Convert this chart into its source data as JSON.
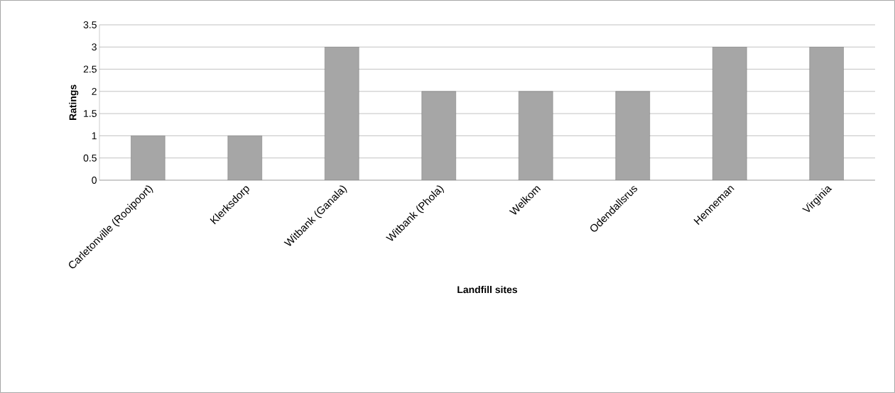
{
  "chart_data": {
    "type": "bar",
    "xlabel": "Landfill sites",
    "ylabel": "Ratings",
    "categories": [
      "Carletonville (Rooipoort)",
      "Klerksdorp",
      "Witbank (Ganala)",
      "Witbank (Phola)",
      "Welkom",
      "Odendallsrus",
      "Henneman",
      "Virginia"
    ],
    "values": [
      1,
      1,
      3,
      2,
      2,
      2,
      3,
      3
    ],
    "color": "#a6a6a6",
    "ylim": [
      0,
      3.5
    ],
    "yticks": [
      0,
      0.5,
      1,
      1.5,
      2,
      2.5,
      3,
      3.5
    ],
    "grid": "y"
  }
}
